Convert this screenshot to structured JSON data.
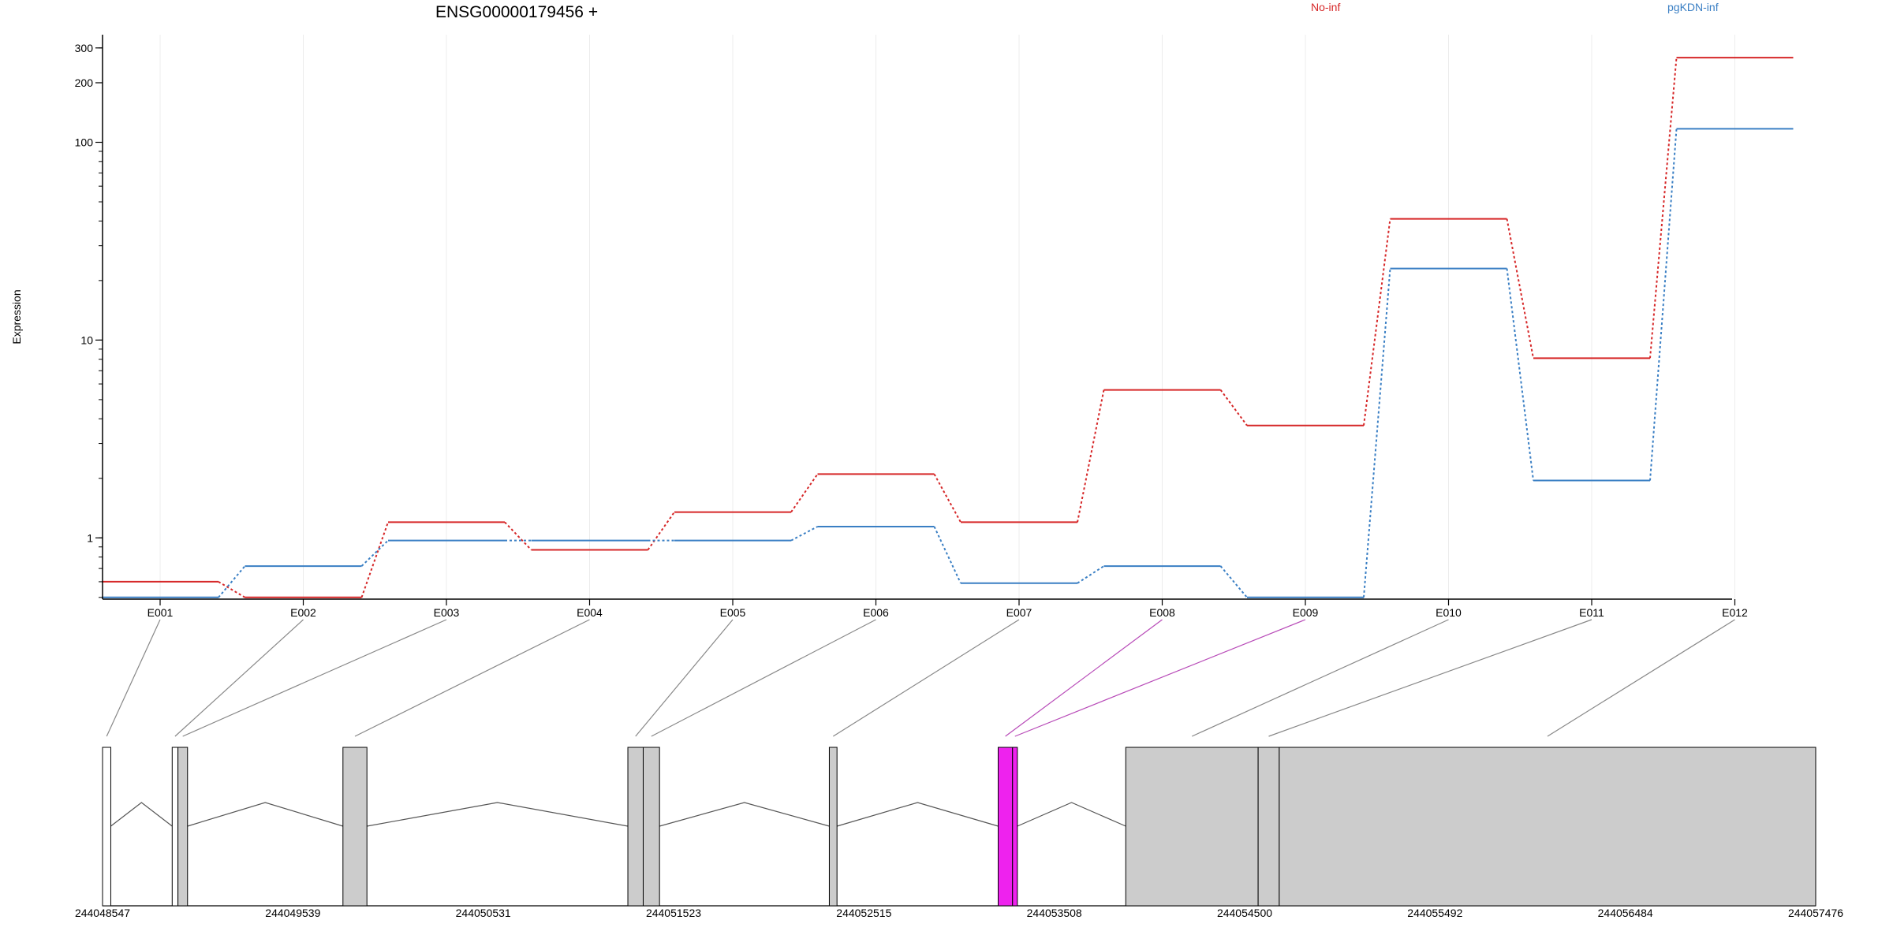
{
  "chart_data": {
    "type": "line",
    "title": "ENSG00000179456 +",
    "ylabel": "Expression",
    "xlabel": "",
    "y_scale": "log",
    "ylim": [
      0.49,
      350
    ],
    "y_ticks": [
      1,
      10,
      100,
      200,
      300
    ],
    "grid": "vertical",
    "categories": [
      "E001",
      "E002",
      "E003",
      "E004",
      "E005",
      "E006",
      "E007",
      "E008",
      "E009",
      "E010",
      "E011",
      "E012"
    ],
    "series": [
      {
        "name": "No-inf",
        "color": "#d62728",
        "values": [
          0.6,
          0.5,
          1.2,
          0.87,
          1.35,
          2.1,
          1.2,
          5.6,
          3.7,
          41.0,
          8.1,
          268.0
        ]
      },
      {
        "name": "pgKDN-inf",
        "color": "#3a7fc4",
        "values": [
          0.5,
          0.72,
          0.97,
          0.97,
          0.97,
          1.14,
          0.59,
          0.72,
          0.5,
          23.0,
          1.95,
          117.0
        ]
      }
    ],
    "gene_model": {
      "coordinate_labels": [
        "244048547",
        "244049539",
        "244050531",
        "244051523",
        "244052515",
        "244053508",
        "244054500",
        "244055492",
        "244056484",
        "244057476"
      ],
      "coord_start": 244048547,
      "coord_end": 244057476,
      "exons": [
        {
          "id": "E001",
          "start": 244048547,
          "end": 244048590,
          "fill": "#ffffff",
          "highlight": false
        },
        {
          "id": "E002",
          "start": 244048910,
          "end": 244048940,
          "fill": "#ffffff",
          "highlight": false
        },
        {
          "id": "E003",
          "start": 244048940,
          "end": 244048990,
          "fill": "#cccccc",
          "highlight": false
        },
        {
          "id": "E004",
          "start": 244049800,
          "end": 244049925,
          "fill": "#cccccc",
          "highlight": false
        },
        {
          "id": "E005",
          "start": 244051285,
          "end": 244051365,
          "fill": "#cccccc",
          "highlight": false
        },
        {
          "id": "E006",
          "start": 244051365,
          "end": 244051450,
          "fill": "#cccccc",
          "highlight": false
        },
        {
          "id": "E007",
          "start": 244052335,
          "end": 244052375,
          "fill": "#cccccc",
          "highlight": false
        },
        {
          "id": "E008",
          "start": 244053215,
          "end": 244053290,
          "fill": "#ee22ee",
          "highlight": true
        },
        {
          "id": "E009",
          "start": 244053290,
          "end": 244053315,
          "fill": "#ee22ee",
          "highlight": true
        },
        {
          "id": "E010",
          "start": 244053880,
          "end": 244054570,
          "fill": "#cccccc",
          "highlight": false
        },
        {
          "id": "E011",
          "start": 244054570,
          "end": 244054680,
          "fill": "#cccccc",
          "highlight": false
        },
        {
          "id": "E012",
          "start": 244054680,
          "end": 244057476,
          "fill": "#cccccc",
          "highlight": false
        }
      ]
    }
  }
}
